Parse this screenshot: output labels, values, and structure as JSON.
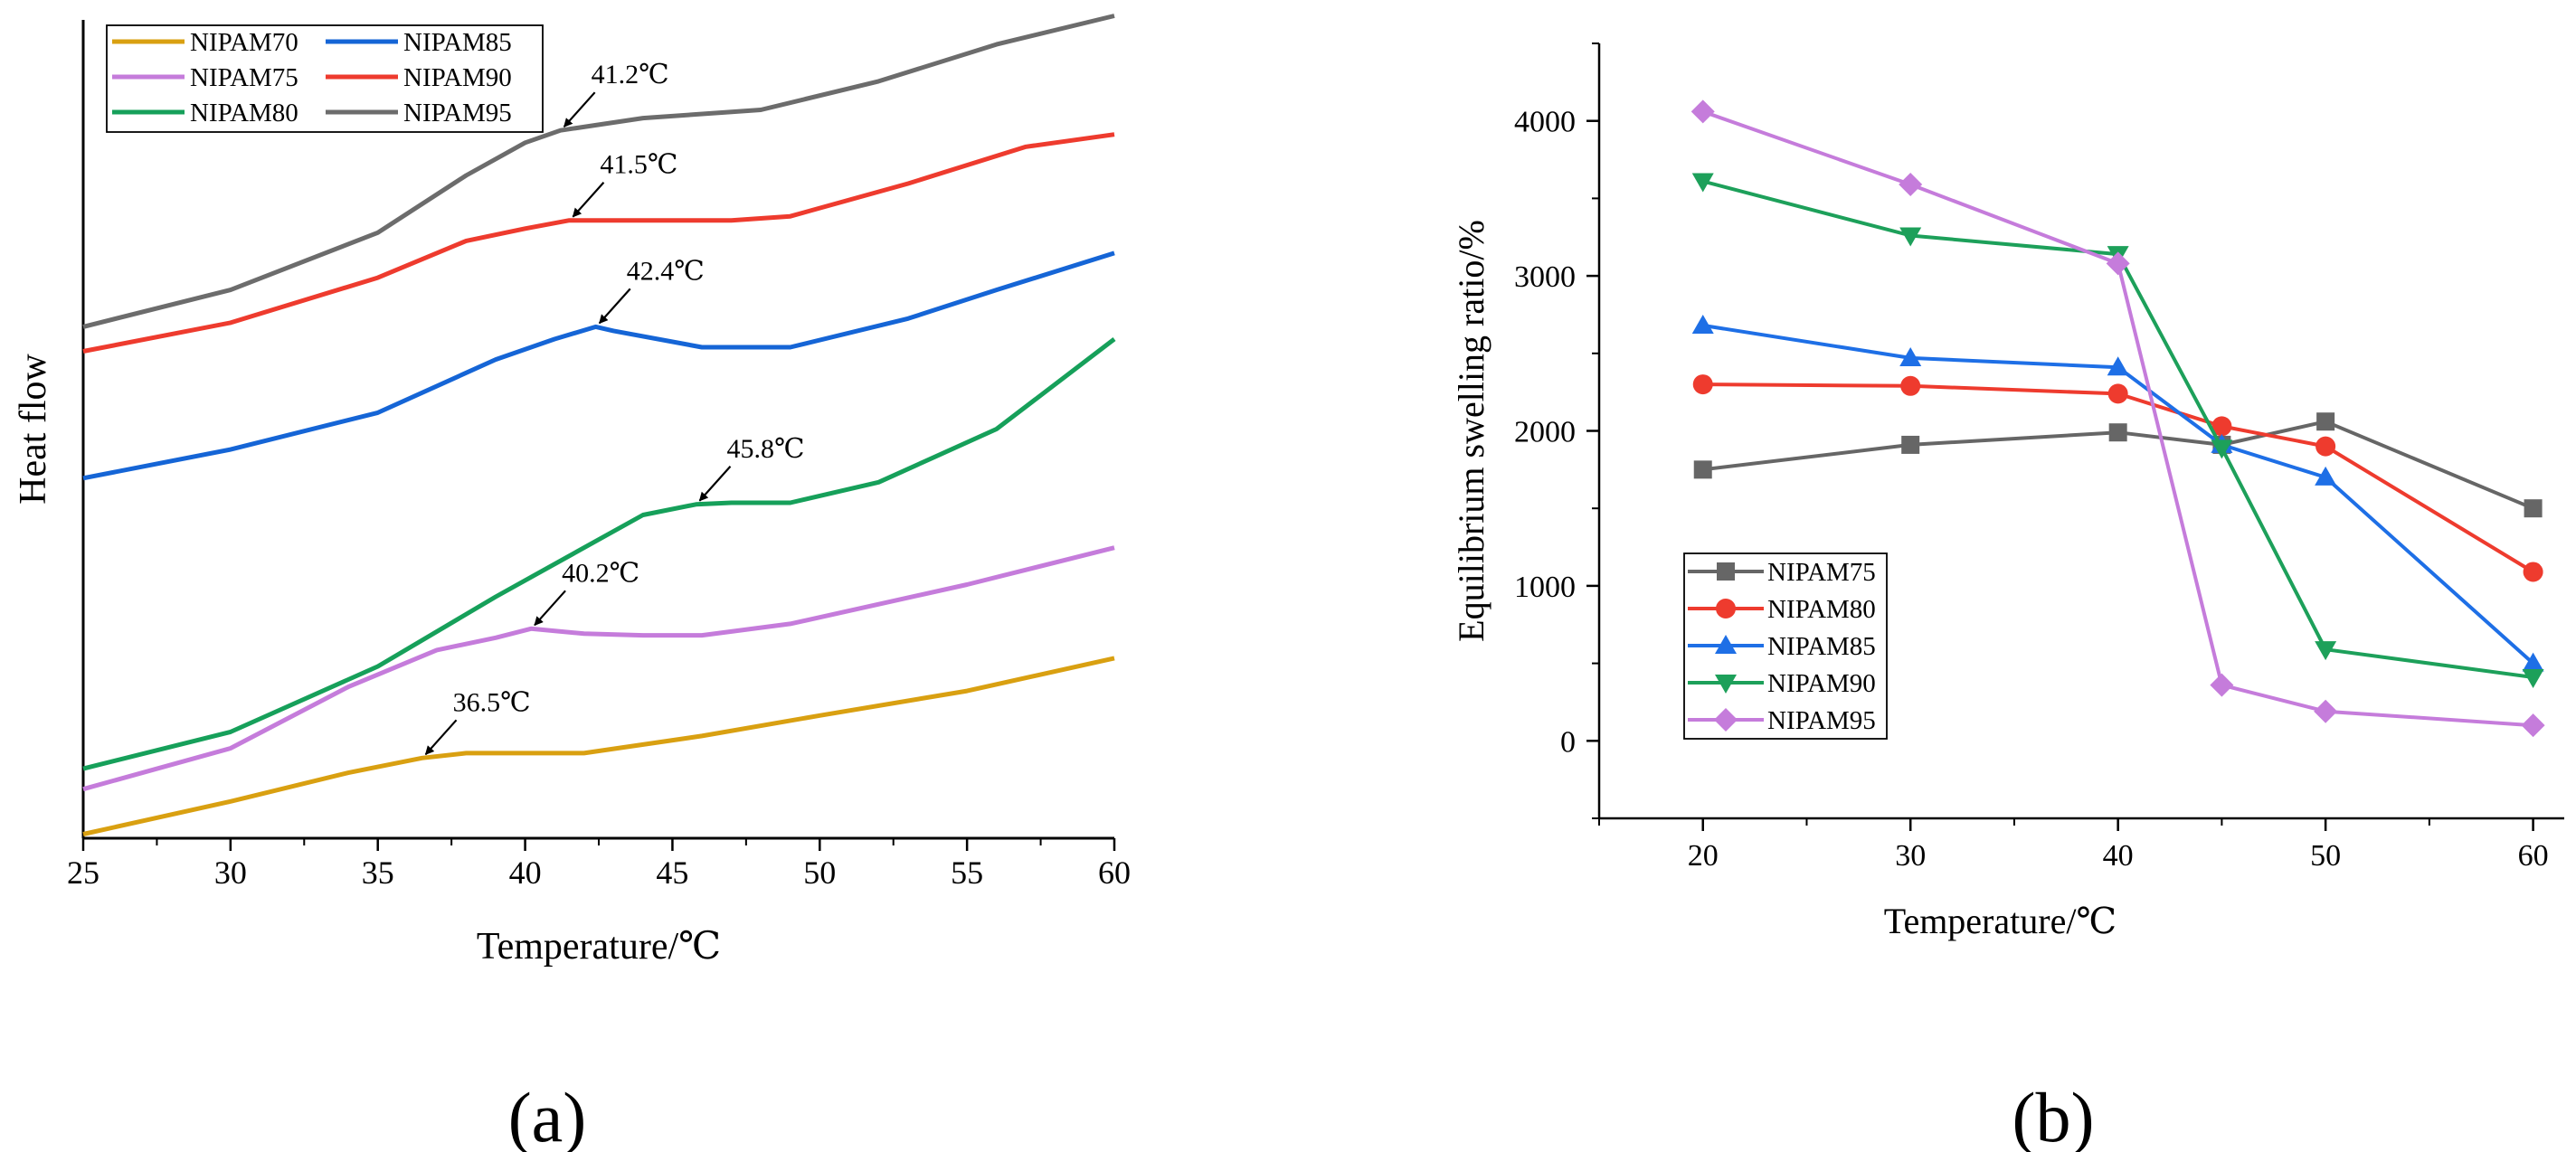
{
  "colors": {
    "NIPAM70": "#D9A011",
    "NIPAM75": "#C57CDB",
    "NIPAM80": "#16A05A",
    "NIPAM85": "#1565D6",
    "NIPAM90": "#EE3B2E",
    "NIPAM95": "#6C6C6C",
    "b_NIPAM75": "#666666",
    "b_NIPAM80": "#EE3B2E",
    "b_NIPAM85": "#1E6FE6",
    "b_NIPAM90": "#1DA05A",
    "b_NIPAM95": "#C57CDB"
  },
  "panel_labels": {
    "a": "(a)",
    "b": "(b)"
  },
  "chart_data": [
    {
      "id": "a",
      "type": "line",
      "title": "",
      "xlabel": "Temperature/℃",
      "ylabel": "Heat flow",
      "xlim": [
        25,
        60
      ],
      "ylim": [
        0,
        10
      ],
      "xticks": [
        25,
        30,
        35,
        40,
        45,
        50,
        55,
        60
      ],
      "legend_position": "top-left",
      "legend": [
        "NIPAM70",
        "NIPAM85",
        "NIPAM75",
        "NIPAM90",
        "NIPAM80",
        "NIPAM95"
      ],
      "series": [
        {
          "name": "NIPAM70",
          "x": [
            25,
            30,
            34,
            36.5,
            38,
            42,
            46,
            50,
            55,
            60
          ],
          "y": [
            0.05,
            0.45,
            0.8,
            0.98,
            1.04,
            1.04,
            1.25,
            1.5,
            1.8,
            2.2
          ]
        },
        {
          "name": "NIPAM75",
          "x": [
            25,
            30,
            34,
            37,
            39,
            40.2,
            42,
            44,
            46,
            49,
            55,
            60
          ],
          "y": [
            0.6,
            1.1,
            1.85,
            2.3,
            2.45,
            2.56,
            2.5,
            2.48,
            2.48,
            2.62,
            3.1,
            3.55
          ]
        },
        {
          "name": "NIPAM80",
          "x": [
            25,
            30,
            35,
            39,
            42,
            44,
            45.8,
            47,
            49,
            52,
            56,
            60
          ],
          "y": [
            0.85,
            1.3,
            2.1,
            2.95,
            3.55,
            3.95,
            4.08,
            4.1,
            4.1,
            4.35,
            5.0,
            6.1
          ]
        },
        {
          "name": "NIPAM85",
          "x": [
            25,
            30,
            35,
            39,
            41,
            42.4,
            43,
            46,
            49,
            53,
            56,
            60
          ],
          "y": [
            4.4,
            4.75,
            5.2,
            5.85,
            6.1,
            6.25,
            6.2,
            6.0,
            6.0,
            6.35,
            6.7,
            7.15
          ]
        },
        {
          "name": "NIPAM90",
          "x": [
            25,
            30,
            35,
            38,
            40,
            41.5,
            44,
            47,
            49,
            53,
            57,
            60
          ],
          "y": [
            5.95,
            6.3,
            6.85,
            7.3,
            7.45,
            7.55,
            7.55,
            7.55,
            7.6,
            8.0,
            8.45,
            8.6
          ]
        },
        {
          "name": "NIPAM95",
          "x": [
            25,
            30,
            35,
            38,
            40,
            41.2,
            44,
            48,
            52,
            56,
            60
          ],
          "y": [
            6.25,
            6.7,
            7.4,
            8.1,
            8.5,
            8.65,
            8.8,
            8.9,
            9.25,
            9.7,
            10.05
          ]
        }
      ],
      "annotations": [
        {
          "text": "36.5℃",
          "x": 36.5,
          "series": "NIPAM70"
        },
        {
          "text": "40.2℃",
          "x": 40.2,
          "series": "NIPAM75"
        },
        {
          "text": "45.8℃",
          "x": 45.8,
          "series": "NIPAM80"
        },
        {
          "text": "42.4℃",
          "x": 42.4,
          "series": "NIPAM85"
        },
        {
          "text": "41.5℃",
          "x": 41.5,
          "series": "NIPAM90"
        },
        {
          "text": "41.2℃",
          "x": 41.2,
          "series": "NIPAM95"
        }
      ]
    },
    {
      "id": "b",
      "type": "line",
      "title": "",
      "xlabel": "Temperature/℃",
      "ylabel": "Equilibrium swelling ratio/%",
      "xlim": [
        15,
        61.5
      ],
      "ylim": [
        -500,
        4500
      ],
      "xticks": [
        20,
        30,
        40,
        50,
        60
      ],
      "yticks": [
        0,
        1000,
        2000,
        3000,
        4000
      ],
      "legend_position": "lower-left",
      "x": [
        20,
        30,
        40,
        45,
        50,
        60
      ],
      "series": [
        {
          "name": "NIPAM75",
          "marker": "square",
          "values": [
            1750,
            1910,
            1990,
            1910,
            2060,
            1500
          ]
        },
        {
          "name": "NIPAM80",
          "marker": "circle",
          "values": [
            2300,
            2290,
            2240,
            2030,
            1900,
            1090
          ]
        },
        {
          "name": "NIPAM85",
          "marker": "triangle-up",
          "values": [
            2680,
            2470,
            2410,
            1910,
            1700,
            500
          ]
        },
        {
          "name": "NIPAM90",
          "marker": "triangle-down",
          "values": [
            3610,
            3260,
            3140,
            1890,
            590,
            410
          ]
        },
        {
          "name": "NIPAM95",
          "marker": "diamond",
          "values": [
            4060,
            3590,
            3080,
            360,
            190,
            100
          ]
        }
      ]
    }
  ]
}
